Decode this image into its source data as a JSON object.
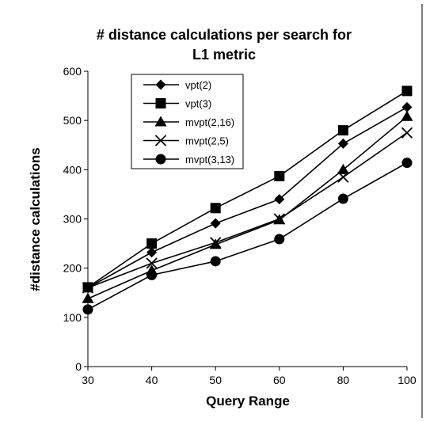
{
  "chart_data": {
    "type": "line",
    "title_line1": "# distance calculations per search for",
    "title_line2": "L1 metric",
    "xlabel": "Query Range",
    "ylabel": "#distance calculations",
    "categories": [
      30,
      40,
      50,
      60,
      80,
      100
    ],
    "ylim": [
      0,
      600
    ],
    "yticks": [
      0,
      100,
      200,
      300,
      400,
      500,
      600
    ],
    "grid": false,
    "legend_position": "top-left",
    "line_color": "#000000",
    "series": [
      {
        "name": "vpt(2)",
        "marker": "diamond",
        "values": [
          160,
          232,
          291,
          340,
          453,
          527
        ]
      },
      {
        "name": "vpt(3)",
        "marker": "square",
        "values": [
          161,
          250,
          322,
          387,
          480,
          560
        ]
      },
      {
        "name": "mvpt(2,16)",
        "marker": "triangle",
        "values": [
          138,
          195,
          248,
          298,
          400,
          508
        ]
      },
      {
        "name": "mvpt(2,5)",
        "marker": "x",
        "values": [
          160,
          210,
          252,
          300,
          385,
          475
        ]
      },
      {
        "name": "mvpt(3,13)",
        "marker": "circle",
        "values": [
          116,
          186,
          214,
          259,
          341,
          414
        ]
      }
    ]
  }
}
